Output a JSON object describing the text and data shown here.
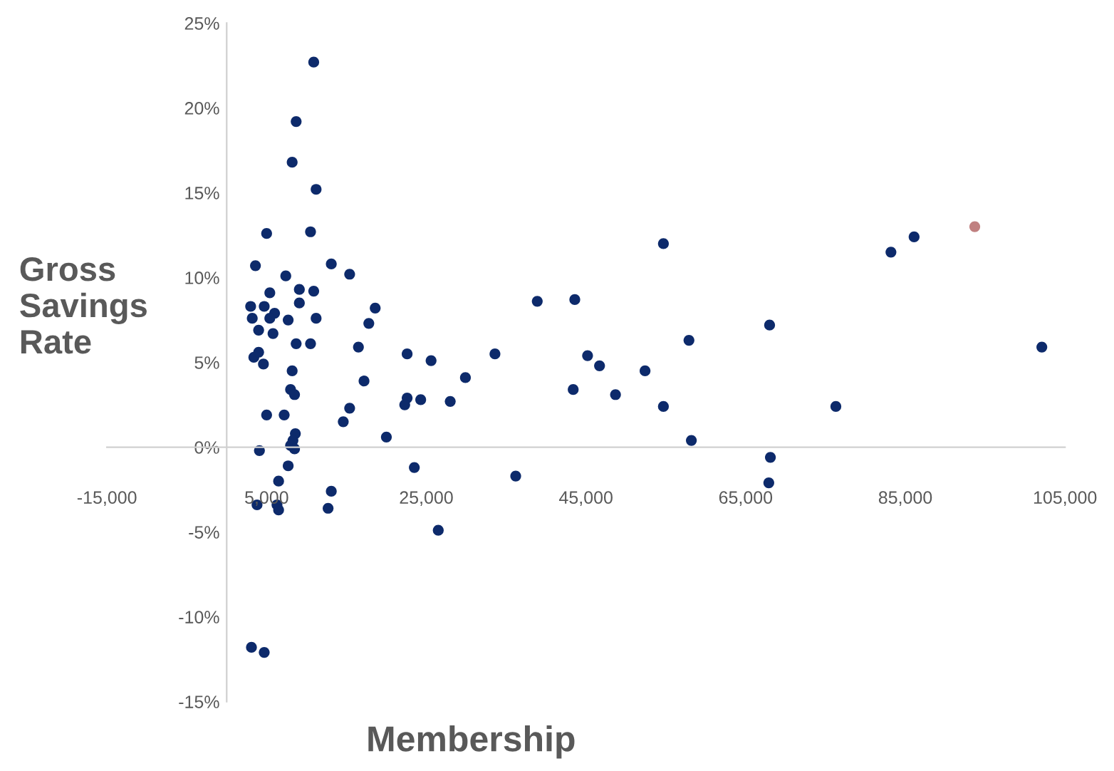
{
  "chart_data": {
    "type": "scatter",
    "xlabel": "Membership",
    "ylabel": "Gross\nSavings\nRate",
    "xlim": [
      -15000,
      105000
    ],
    "xticks": [
      {
        "value": -15000,
        "label": "-15,000"
      },
      {
        "value": 5000,
        "label": "5,000"
      },
      {
        "value": 25000,
        "label": "25,000"
      },
      {
        "value": 45000,
        "label": "45,000"
      },
      {
        "value": 65000,
        "label": "65,000"
      },
      {
        "value": 85000,
        "label": "85,000"
      },
      {
        "value": 105000,
        "label": "105,000"
      }
    ],
    "ylim": [
      -15,
      25
    ],
    "yticks": [
      {
        "value": -15,
        "label": "-15%"
      },
      {
        "value": -10,
        "label": "-10%"
      },
      {
        "value": -5,
        "label": "-5%"
      },
      {
        "value": 0,
        "label": "0%"
      },
      {
        "value": 5,
        "label": "5%"
      },
      {
        "value": 10,
        "label": "10%"
      },
      {
        "value": 15,
        "label": "15%"
      },
      {
        "value": 20,
        "label": "20%"
      },
      {
        "value": 25,
        "label": "25%"
      }
    ],
    "grid": false,
    "marker": "circle",
    "series": [
      {
        "color": "#0d2a6b",
        "x": [
          10900,
          8700,
          8200,
          11200,
          5000,
          10500,
          3600,
          13100,
          15400,
          7400,
          5400,
          9100,
          10900,
          9100,
          3000,
          4700,
          6000,
          5400,
          3200,
          7700,
          11200,
          18600,
          17800,
          4000,
          5800,
          8700,
          10500,
          16500,
          22600,
          25600,
          3400,
          4000,
          4600,
          8200,
          17200,
          8000,
          8500,
          22600,
          22300,
          24300,
          15400,
          14600,
          5000,
          7200,
          20000,
          8600,
          8300,
          8000,
          8500,
          4100,
          7700,
          23500,
          6500,
          13100,
          3800,
          6300,
          6500,
          12700,
          3100,
          4700,
          28000,
          29900,
          33600,
          38900,
          43600,
          45200,
          46700,
          43400,
          48700,
          52400,
          54700,
          54700,
          57900,
          58200,
          68000,
          68100,
          67900,
          76300,
          36200,
          26500,
          83200,
          86100,
          102100
        ],
        "values": [
          22.7,
          19.2,
          16.8,
          15.2,
          12.6,
          12.7,
          10.7,
          10.8,
          10.2,
          10.1,
          9.1,
          9.3,
          9.2,
          8.5,
          8.3,
          8.3,
          7.9,
          7.6,
          7.6,
          7.5,
          7.6,
          8.2,
          7.3,
          6.9,
          6.7,
          6.1,
          6.1,
          5.9,
          5.5,
          5.1,
          5.3,
          5.6,
          4.9,
          4.5,
          3.9,
          3.4,
          3.1,
          2.9,
          2.5,
          2.8,
          2.3,
          1.5,
          1.9,
          1.9,
          0.6,
          0.8,
          0.4,
          0.1,
          -0.1,
          -0.2,
          -1.1,
          -1.2,
          -2.0,
          -2.6,
          -3.4,
          -3.4,
          -3.7,
          -3.6,
          -11.8,
          -12.1,
          2.7,
          4.1,
          5.5,
          8.6,
          8.7,
          5.4,
          4.8,
          3.4,
          3.1,
          4.5,
          12.0,
          2.4,
          6.3,
          0.4,
          7.2,
          -0.6,
          -2.1,
          2.4,
          -1.7,
          -4.9,
          11.5,
          12.4,
          5.9
        ]
      },
      {
        "color": "#c08080",
        "x": [
          93700
        ],
        "values": [
          13.0
        ]
      }
    ]
  }
}
